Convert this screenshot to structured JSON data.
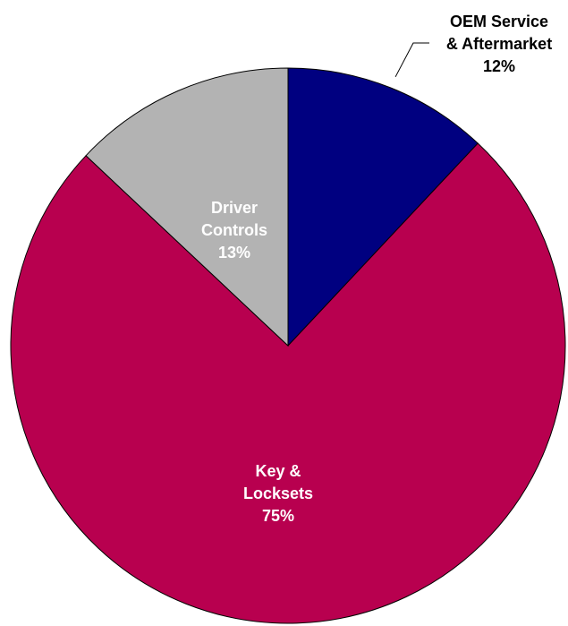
{
  "chart_data": {
    "type": "pie",
    "slices": [
      {
        "label": [
          "OEM Service",
          "& Aftermarket"
        ],
        "pct_text": "12%",
        "value": 12,
        "color": "#000080",
        "text_color": "#000000",
        "label_outside": true
      },
      {
        "label": [
          "Key &",
          "Locksets"
        ],
        "pct_text": "75%",
        "value": 75,
        "color": "#B8004F",
        "text_color": "#ffffff",
        "label_outside": false
      },
      {
        "label": [
          "Driver",
          "Controls"
        ],
        "pct_text": "13%",
        "value": 13,
        "color": "#B3B3B3",
        "text_color": "#ffffff",
        "label_outside": false
      }
    ]
  }
}
